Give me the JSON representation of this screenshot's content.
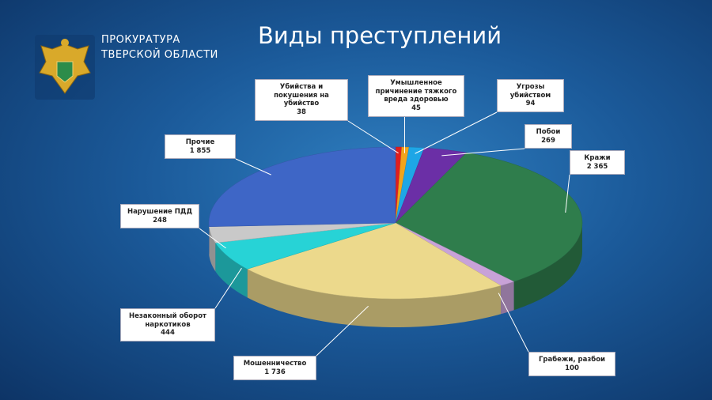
{
  "header": {
    "org": [
      "ПРОКУРАТУРА",
      "ТВЕРСКОЙ ОБЛАСТИ"
    ]
  },
  "chart_data": {
    "type": "pie",
    "title": "Виды преступлений",
    "categories": [
      "Убийства и покушения на убийство",
      "Умышленное причинение тяжкого вреда здоровью",
      "Угрозы убийством",
      "Побои",
      "Кражи",
      "Грабежи, разбои",
      "Мошенничество",
      "Незаконный оборот наркотиков",
      "Нарушение ПДД",
      "Прочие"
    ],
    "values": [
      38,
      45,
      94,
      269,
      2365,
      100,
      1736,
      444,
      248,
      1855
    ],
    "value_labels": [
      "38",
      "45",
      "94",
      "269",
      "2 365",
      "100",
      "1 736",
      "444",
      "248",
      "1 855"
    ],
    "colors": [
      "#e01e1e",
      "#f2a41c",
      "#1ea6e6",
      "#6b2fa6",
      "#2f7d4c",
      "#c8a2d8",
      "#ecd98c",
      "#27d3d6",
      "#c9c9c9",
      "#3e66c6"
    ]
  }
}
